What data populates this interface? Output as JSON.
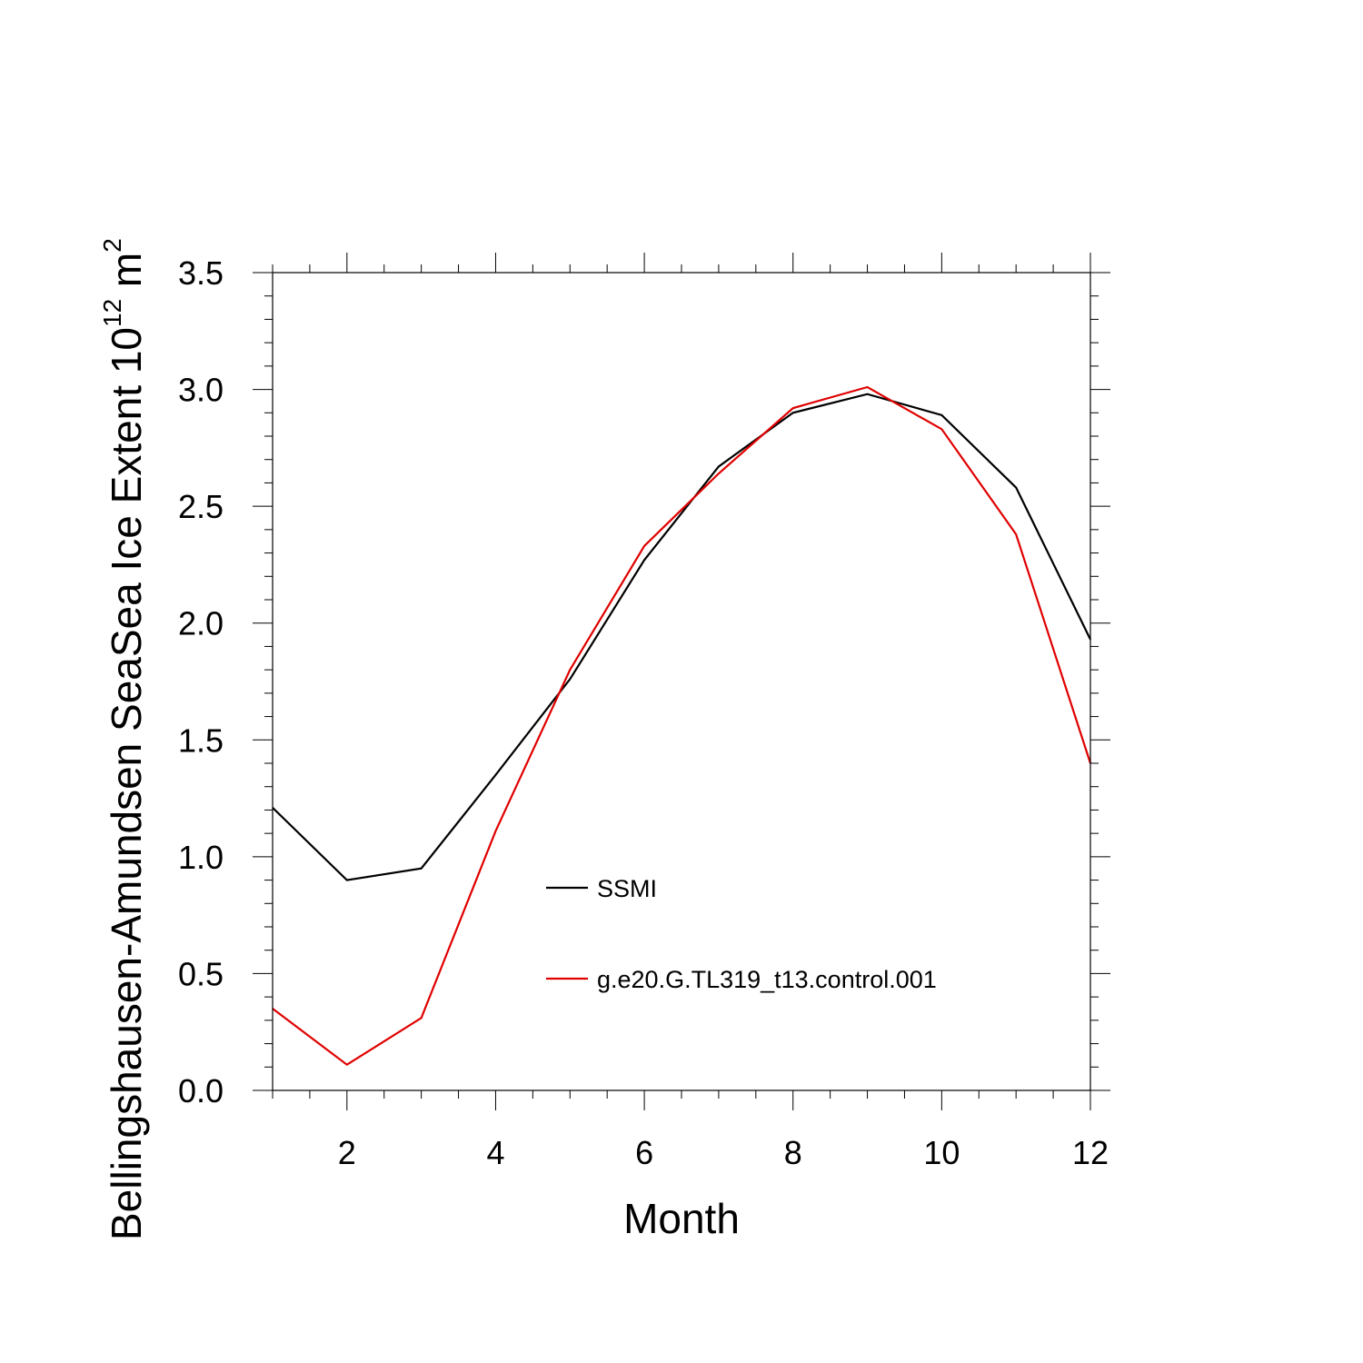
{
  "chart_data": {
    "type": "line",
    "xlabel": "Month",
    "ylabel": "Bellingshausen-Amundsen SeaSea Ice Extent 10",
    "ylabel_sup": "12",
    "ylabel_unit": " m",
    "ylabel_unit_sup": "2",
    "xlim": [
      1,
      12
    ],
    "ylim": [
      0,
      3.5
    ],
    "x_ticks": [
      2,
      4,
      6,
      8,
      10,
      12
    ],
    "x_tick_labels": [
      "2",
      "4",
      "6",
      "8",
      "10",
      "12"
    ],
    "y_ticks": [
      0,
      0.5,
      1,
      1.5,
      2,
      2.5,
      3,
      3.5
    ],
    "y_tick_labels": [
      "0.0",
      "0.5",
      "1.0",
      "1.5",
      "2.0",
      "2.5",
      "3.0",
      "3.5"
    ],
    "grid": false,
    "legend_position": "center",
    "x": [
      1,
      2,
      3,
      4,
      5,
      6,
      7,
      8,
      9,
      10,
      11,
      12
    ],
    "series": [
      {
        "name": "SSMI",
        "color": "#000000",
        "values": [
          1.21,
          0.9,
          0.95,
          1.35,
          1.76,
          2.27,
          2.67,
          2.9,
          2.98,
          2.89,
          2.58,
          1.93
        ]
      },
      {
        "name": "g.e20.G.TL319_t13.control.001",
        "color": "#e00000",
        "values": [
          0.35,
          0.11,
          0.31,
          1.11,
          1.8,
          2.33,
          2.64,
          2.92,
          3.01,
          2.83,
          2.38,
          1.4
        ]
      }
    ]
  }
}
